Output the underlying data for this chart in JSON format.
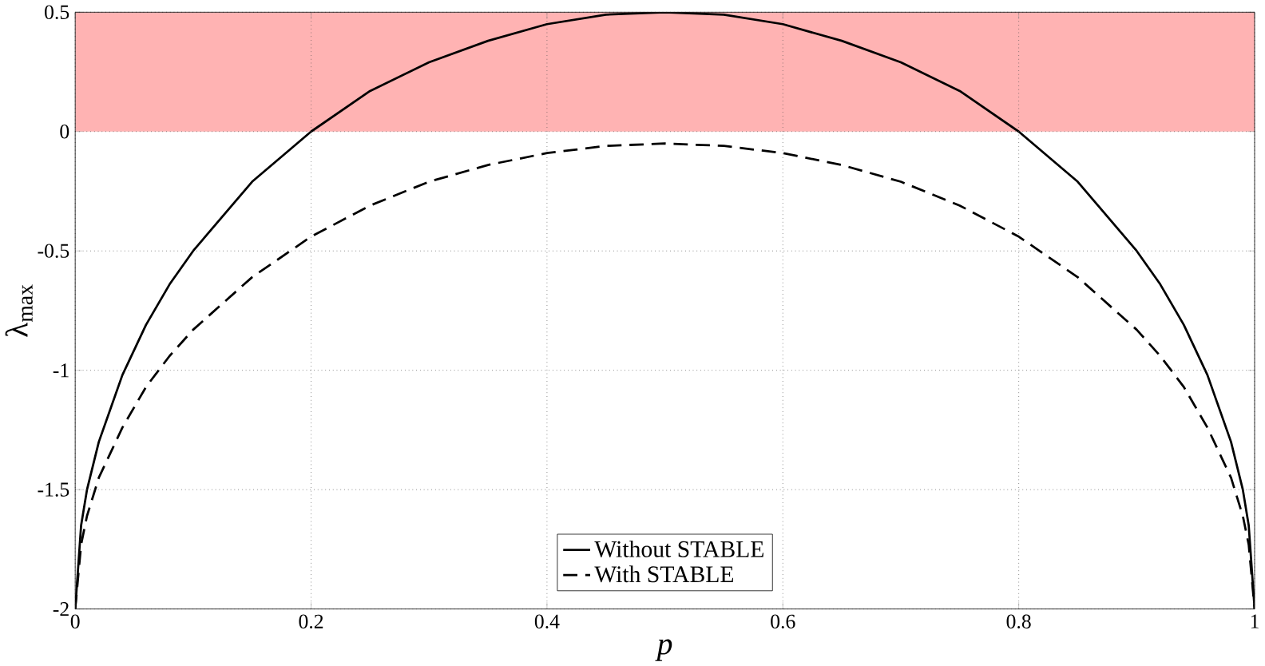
{
  "chart_data": {
    "type": "line",
    "xlabel": "p",
    "ylabel": "λ$_{max}$",
    "x": [
      0,
      0.005,
      0.01,
      0.02,
      0.04,
      0.06,
      0.08,
      0.1,
      0.15,
      0.2,
      0.25,
      0.3,
      0.35,
      0.4,
      0.45,
      0.5,
      0.55,
      0.6,
      0.65,
      0.7,
      0.75,
      0.8,
      0.85,
      0.9,
      0.92,
      0.94,
      0.96,
      0.98,
      0.99,
      0.995,
      1
    ],
    "series": [
      {
        "name": "Without STABLE",
        "color": "#000000",
        "line_style": "solid",
        "values": [
          -2,
          -1.65,
          -1.5,
          -1.3,
          -1.02,
          -0.81,
          -0.64,
          -0.5,
          -0.21,
          0,
          0.17,
          0.29,
          0.38,
          0.45,
          0.49,
          0.5,
          0.49,
          0.45,
          0.38,
          0.29,
          0.17,
          0,
          -0.21,
          -0.5,
          -0.64,
          -0.81,
          -1.02,
          -1.3,
          -1.5,
          -1.65,
          -2
        ]
      },
      {
        "name": "With STABLE",
        "color": "#000000",
        "line_style": "dashed",
        "values": [
          -2,
          -1.73,
          -1.61,
          -1.45,
          -1.24,
          -1.07,
          -0.94,
          -0.83,
          -0.61,
          -0.44,
          -0.31,
          -0.21,
          -0.14,
          -0.09,
          -0.06,
          -0.05,
          -0.06,
          -0.09,
          -0.14,
          -0.21,
          -0.31,
          -0.44,
          -0.61,
          -0.83,
          -0.94,
          -1.07,
          -1.24,
          -1.45,
          -1.61,
          -1.73,
          -2
        ]
      }
    ],
    "xlim": [
      0,
      1
    ],
    "ylim": [
      -2,
      0.5
    ],
    "xticks": [
      0,
      0.2,
      0.4,
      0.6,
      0.8,
      1
    ],
    "yticks": [
      -2,
      -1.5,
      -1,
      -0.5,
      0,
      0.5
    ],
    "bands": [
      {
        "axis": "y",
        "from": 0,
        "to": 0.5,
        "color": "#ffb3b3"
      }
    ],
    "grid": true,
    "legend": "bottom"
  }
}
